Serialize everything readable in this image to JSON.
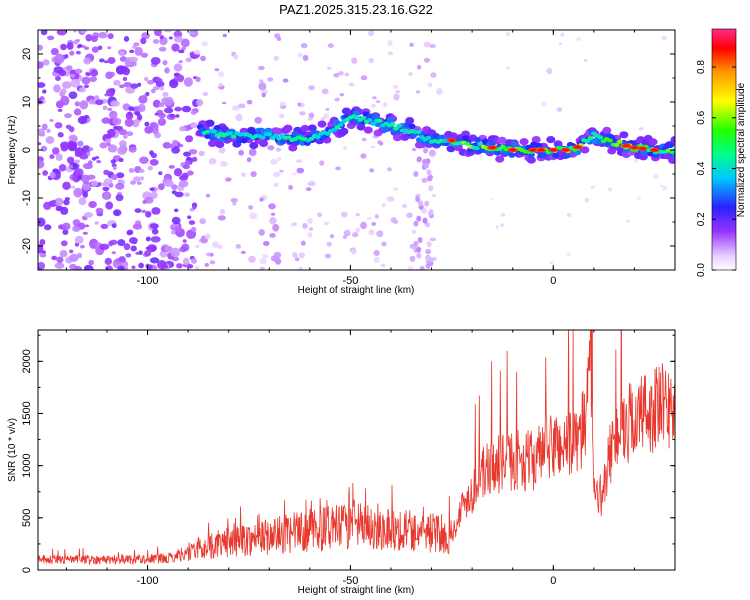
{
  "title": "PAZ1.2025.315.23.16.G22",
  "chart_data": [
    {
      "type": "heatmap",
      "name": "spectrogram",
      "xlabel": "Height of straight line (km)",
      "ylabel": "Frequency (Hz)",
      "xlim": [
        -127,
        30
      ],
      "ylim": [
        -25,
        25
      ],
      "x_ticks": [
        -100,
        -50,
        0
      ],
      "y_ticks": [
        -20,
        -10,
        0,
        10,
        20
      ],
      "ridge": {
        "x": [
          -87,
          -80,
          -70,
          -62,
          -55,
          -50,
          -45,
          -40,
          -35,
          -30,
          -25,
          -20,
          -10,
          0,
          5,
          10,
          15,
          20,
          25,
          30
        ],
        "frequency": [
          4,
          3,
          3,
          2,
          4,
          7,
          6,
          5,
          4,
          2,
          2,
          1,
          0,
          0,
          0,
          3,
          1.5,
          0.5,
          0,
          0
        ]
      },
      "colorbar": {
        "label": "Normalized spectral amplitude",
        "range": [
          0,
          0.95
        ],
        "ticks": [
          0.0,
          0.2,
          0.4,
          0.6,
          0.8
        ],
        "tick_labels": [
          "0.0",
          "0.2",
          "0.4",
          "0.6",
          "0.8"
        ],
        "colormap": "rainbow"
      }
    },
    {
      "type": "line",
      "name": "snr",
      "xlabel": "Height of straight line (km)",
      "ylabel": "SNR (10 * v/v)",
      "xlim": [
        -127,
        30
      ],
      "ylim": [
        0,
        2300
      ],
      "x_ticks": [
        -100,
        -50,
        0
      ],
      "y_ticks": [
        0,
        500,
        1000,
        1500,
        2000
      ],
      "color": "#e8382e",
      "series": [
        {
          "name": "SNR",
          "x": [
            -127,
            -110,
            -95,
            -88,
            -80,
            -70,
            -60,
            -50,
            -45,
            -40,
            -30,
            -25,
            -22,
            -20,
            -18,
            -15,
            -10,
            -5,
            0,
            5,
            8,
            9,
            10,
            12,
            15,
            20,
            25,
            30
          ],
          "y": [
            100,
            100,
            110,
            200,
            270,
            320,
            380,
            420,
            420,
            400,
            360,
            330,
            650,
            750,
            900,
            1000,
            1050,
            1050,
            1200,
            1200,
            1400,
            2250,
            800,
            700,
            1300,
            1450,
            1550,
            1550
          ]
        }
      ]
    }
  ]
}
